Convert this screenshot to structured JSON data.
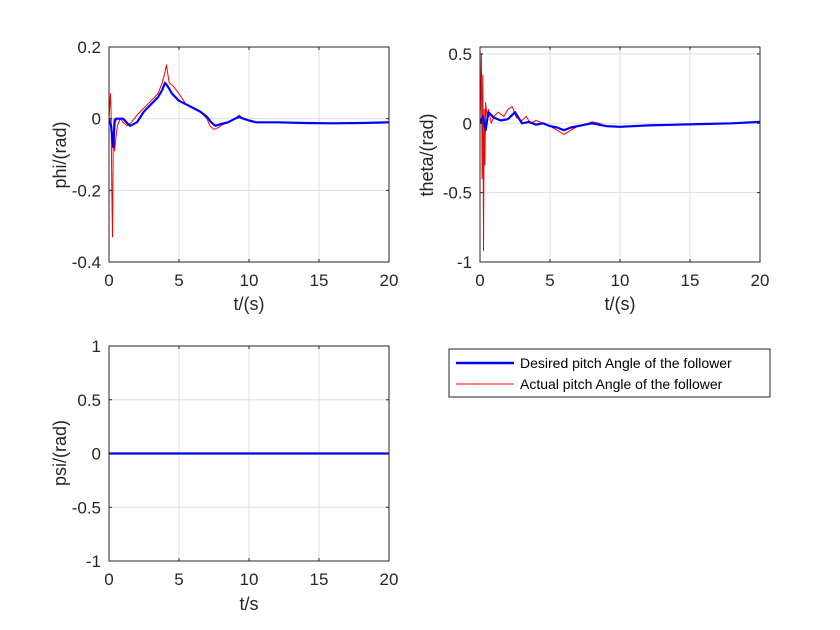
{
  "chart_data": [
    {
      "type": "line",
      "xlabel": "t/(s)",
      "ylabel": "phi/(rad)",
      "xlim": [
        0,
        20
      ],
      "ylim": [
        -0.4,
        0.2
      ],
      "xticks": [
        0,
        5,
        10,
        15,
        20
      ],
      "yticks": [
        -0.4,
        -0.2,
        0,
        0.2
      ],
      "ytick_labels": [
        "-0.4",
        "-0.2",
        "0",
        "0.2"
      ],
      "grid": true,
      "series": [
        {
          "role": "desired",
          "color": "#0000ff",
          "x": [
            0,
            0.15,
            0.3,
            0.4,
            0.5,
            0.7,
            1.0,
            1.5,
            2.0,
            2.5,
            3.0,
            3.5,
            3.8,
            4.0,
            4.2,
            4.5,
            5.0,
            5.5,
            6.0,
            6.5,
            7.0,
            7.3,
            7.6,
            8.0,
            8.5,
            9.0,
            9.3,
            9.6,
            10.0,
            10.5,
            11.0,
            12.0,
            14.0,
            16.0,
            18.0,
            20.0
          ],
          "y": [
            0,
            -0.02,
            -0.08,
            -0.01,
            0.0,
            0.0,
            0.0,
            -0.02,
            -0.01,
            0.02,
            0.04,
            0.06,
            0.08,
            0.1,
            0.09,
            0.07,
            0.05,
            0.04,
            0.03,
            0.02,
            0.005,
            -0.01,
            -0.02,
            -0.015,
            -0.01,
            0.0,
            0.005,
            0.0,
            -0.005,
            -0.01,
            -0.01,
            -0.01,
            -0.012,
            -0.013,
            -0.012,
            -0.01
          ]
        },
        {
          "role": "actual",
          "color": "#ff0000",
          "x": [
            0,
            0.1,
            0.15,
            0.2,
            0.25,
            0.3,
            0.35,
            0.4,
            0.5,
            0.6,
            0.8,
            1.0,
            1.3,
            1.6,
            2.0,
            2.5,
            3.0,
            3.5,
            3.8,
            4.0,
            4.1,
            4.3,
            4.6,
            5.0,
            5.5,
            6.0,
            6.5,
            7.0,
            7.2,
            7.5,
            7.8,
            8.2,
            8.6,
            9.0,
            9.3,
            9.6,
            10.0,
            10.5,
            11.0,
            12.0,
            14.0,
            16.0,
            18.0,
            20.0
          ],
          "y": [
            0,
            0.07,
            0.02,
            -0.2,
            -0.33,
            -0.08,
            0.0,
            -0.09,
            -0.05,
            -0.02,
            0.0,
            -0.01,
            -0.02,
            -0.01,
            0.01,
            0.03,
            0.05,
            0.07,
            0.1,
            0.13,
            0.15,
            0.1,
            0.09,
            0.07,
            0.04,
            0.03,
            0.02,
            0.0,
            -0.02,
            -0.03,
            -0.025,
            -0.015,
            -0.01,
            0.0,
            0.01,
            0.0,
            -0.005,
            -0.01,
            -0.01,
            -0.01,
            -0.012,
            -0.013,
            -0.012,
            -0.01
          ]
        }
      ]
    },
    {
      "type": "line",
      "xlabel": "t/(s)",
      "ylabel": "theta/(rad)",
      "xlim": [
        0,
        20
      ],
      "ylim": [
        -1,
        0.55
      ],
      "xticks": [
        0,
        5,
        10,
        15,
        20
      ],
      "yticks": [
        -1,
        -0.5,
        0,
        0.5
      ],
      "ytick_labels": [
        "-1",
        "-0.5",
        "0",
        "0.5"
      ],
      "grid": true,
      "series": [
        {
          "role": "desired",
          "color": "#0000ff",
          "x": [
            0,
            0.2,
            0.4,
            0.6,
            1.0,
            1.5,
            2.0,
            2.5,
            3.0,
            3.5,
            4.0,
            4.5,
            5.0,
            5.5,
            6.0,
            6.5,
            7.0,
            7.5,
            8.0,
            8.5,
            9.0,
            10.0,
            12.0,
            14.0,
            16.0,
            18.0,
            20.0
          ],
          "y": [
            0,
            0.05,
            -0.05,
            0.08,
            0.04,
            0.02,
            0.03,
            0.08,
            0.0,
            0.01,
            -0.01,
            0.0,
            -0.02,
            -0.03,
            -0.05,
            -0.03,
            -0.02,
            -0.01,
            0.0,
            -0.01,
            -0.02,
            -0.025,
            -0.015,
            -0.01,
            -0.005,
            0.0,
            0.01
          ]
        },
        {
          "role": "actual",
          "color": "#ff0000",
          "x": [
            0,
            0.05,
            0.1,
            0.15,
            0.2,
            0.25,
            0.3,
            0.35,
            0.4,
            0.5,
            0.6,
            0.8,
            1.0,
            1.3,
            1.7,
            2.0,
            2.3,
            2.6,
            3.0,
            3.3,
            3.6,
            4.0,
            4.5,
            5.0,
            5.5,
            6.0,
            6.5,
            7.0,
            7.5,
            8.0,
            8.5,
            9.0,
            10.0,
            12.0,
            14.0,
            16.0,
            18.0,
            20.0
          ],
          "y": [
            0,
            0.2,
            0.5,
            -0.4,
            0.35,
            -0.92,
            0.1,
            -0.3,
            0.15,
            0.05,
            0.1,
            0.0,
            0.05,
            0.08,
            0.05,
            0.1,
            0.12,
            0.04,
            0.02,
            0.05,
            0.0,
            0.02,
            0.0,
            -0.02,
            -0.05,
            -0.08,
            -0.05,
            -0.02,
            -0.01,
            0.01,
            0.0,
            -0.02,
            -0.025,
            -0.015,
            -0.01,
            -0.005,
            0.0,
            0.01
          ]
        }
      ]
    },
    {
      "type": "line",
      "xlabel": "t/s",
      "ylabel": "psi/(rad)",
      "xlim": [
        0,
        20
      ],
      "ylim": [
        -1,
        1
      ],
      "xticks": [
        0,
        5,
        10,
        15,
        20
      ],
      "yticks": [
        -1,
        -0.5,
        0,
        0.5,
        1
      ],
      "ytick_labels": [
        "-1",
        "-0.5",
        "0",
        "0.5",
        "1"
      ],
      "grid": true,
      "series": [
        {
          "role": "desired",
          "color": "#0000ff",
          "x": [
            0,
            20
          ],
          "y": [
            0,
            0
          ]
        },
        {
          "role": "actual",
          "color": "#ff0000",
          "x": [
            0,
            20
          ],
          "y": [
            0,
            0
          ]
        }
      ]
    }
  ],
  "legend": {
    "placement": "right of bottom-left plot",
    "entries": [
      {
        "label": "Desired pitch Angle of the follower",
        "color": "#0000ff"
      },
      {
        "label": "Actual pitch Angle of the follower",
        "color": "#ff0000"
      }
    ]
  }
}
